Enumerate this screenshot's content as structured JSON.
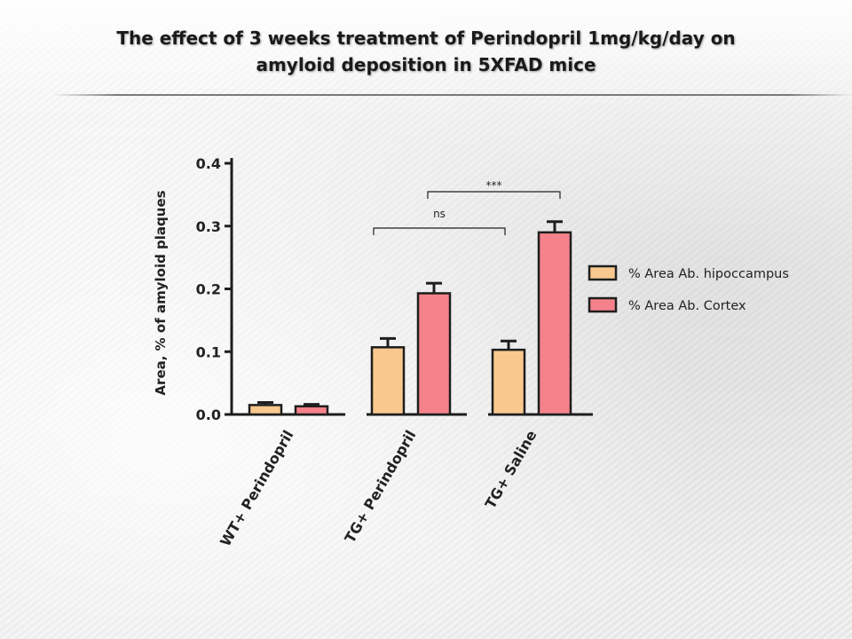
{
  "title": {
    "line1": "The effect of 3 weeks treatment of Perindopril 1mg/kg/day on",
    "line2": "amyloid deposition in 5XFAD mice"
  },
  "chart_data": {
    "type": "bar",
    "ylabel": "Area, % of amyloid plaques",
    "xlabel": "",
    "ylim": [
      0,
      0.4
    ],
    "yticks": [
      "0.0",
      "0.1",
      "0.2",
      "0.3",
      "0.4"
    ],
    "categories": [
      "WT+ Perindopril",
      "TG+ Perindopril",
      "TG+ Saline"
    ],
    "series": [
      {
        "name": "% Area Ab. hipoccampus",
        "color": "#F8C88E",
        "values": [
          0.015,
          0.107,
          0.103
        ],
        "errors": [
          0.004,
          0.014,
          0.014
        ]
      },
      {
        "name": "% Area Ab. Cortex",
        "color": "#F5828A",
        "values": [
          0.013,
          0.193,
          0.29
        ],
        "errors": [
          0.003,
          0.016,
          0.017
        ]
      }
    ],
    "legend_position": "right",
    "annotations": [
      {
        "label": "ns",
        "from": "TG+ Perindopril hipoccampus",
        "to": "TG+ Saline hipoccampus"
      },
      {
        "label": "***",
        "from": "TG+ Perindopril Cortex",
        "to": "TG+ Saline Cortex"
      }
    ]
  }
}
